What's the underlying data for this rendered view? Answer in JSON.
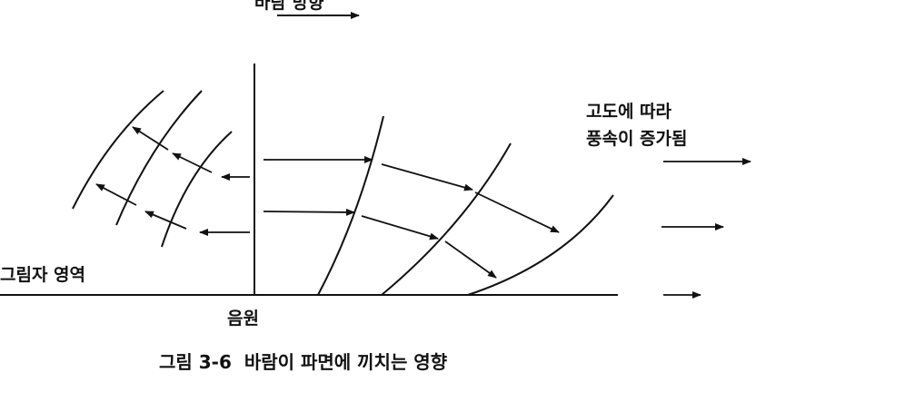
{
  "labels": {
    "wind_direction": "바람 방향",
    "altitude_note_1": "고도에 따라",
    "altitude_note_2": "풍속이 증가됨",
    "shadow_zone": "그림자 영역",
    "source": "음원",
    "caption": "그림 3-6  바람이 파면에 끼치는 영향"
  },
  "colors": {
    "ink": "#111111",
    "background": "#ffffff"
  }
}
